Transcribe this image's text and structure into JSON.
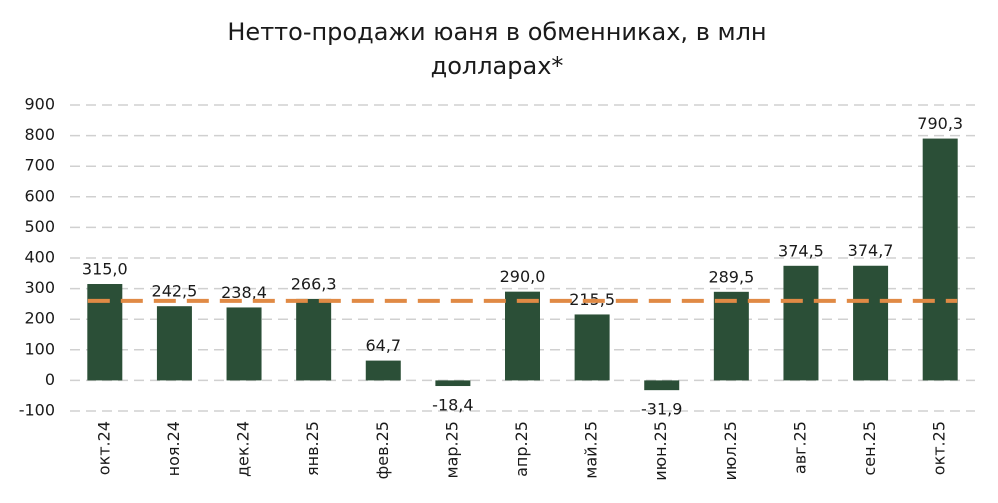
{
  "chart_data": {
    "type": "bar",
    "title_lines": [
      "Нетто-продажи юаня в обменниках, в млн",
      "долларах*"
    ],
    "categories": [
      "окт.24",
      "ноя.24",
      "дек.24",
      "янв.25",
      "фев.25",
      "мар.25",
      "апр.25",
      "май.25",
      "июн.25",
      "июл.25",
      "авг.25",
      "сен.25",
      "окт.25"
    ],
    "values": [
      315.0,
      242.5,
      238.4,
      266.3,
      64.7,
      -18.4,
      290.0,
      215.5,
      -31.9,
      289.5,
      374.5,
      374.7,
      790.3
    ],
    "value_labels": [
      "315,0",
      "242,5",
      "238,4",
      "266,3",
      "64,7",
      "-18,4",
      "290,0",
      "215,5",
      "-31,9",
      "289,5",
      "374,5",
      "374,7",
      "790,3"
    ],
    "color": "#2b4f37",
    "reference_line": 260,
    "reference_color": "#e08a45",
    "ylim": [
      -100,
      900
    ],
    "yticks": [
      -100,
      0,
      100,
      200,
      300,
      400,
      500,
      600,
      700,
      800,
      900
    ],
    "grid": true
  }
}
